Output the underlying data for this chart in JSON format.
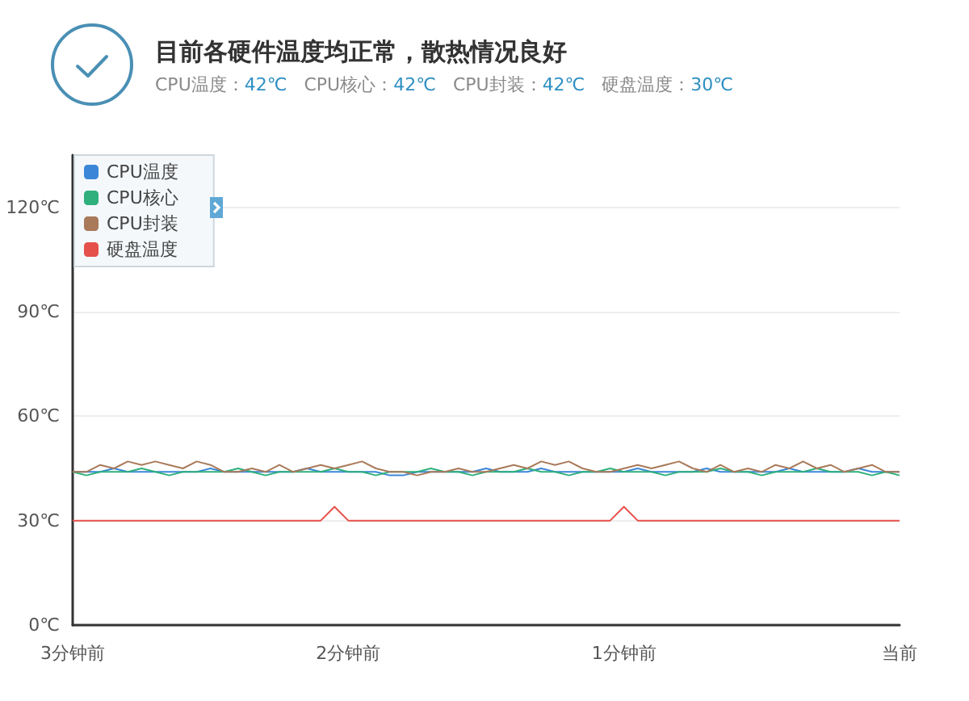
{
  "chart_data": {
    "type": "line",
    "title": "目前各硬件温度均正常，散热情况良好",
    "subtitle": "CPU温度：42℃   CPU核心：42℃   CPU封装：42℃   硬盘温度：30℃",
    "categories": [
      "3分钟前",
      null,
      null,
      null,
      null,
      null,
      null,
      null,
      null,
      null,
      null,
      null,
      null,
      null,
      null,
      null,
      null,
      null,
      null,
      null,
      "2分钟前",
      null,
      null,
      null,
      null,
      null,
      null,
      null,
      null,
      null,
      null,
      null,
      null,
      null,
      null,
      null,
      null,
      null,
      null,
      null,
      "1分钟前",
      null,
      null,
      null,
      null,
      null,
      null,
      null,
      null,
      null,
      null,
      null,
      null,
      null,
      null,
      null,
      null,
      null,
      null,
      null,
      "当前"
    ],
    "series": [
      {
        "name": "CPU温度",
        "color": "#3c86d8",
        "values": [
          44,
          44,
          44,
          45,
          44,
          44,
          44,
          44,
          44,
          44,
          45,
          44,
          44,
          44,
          44,
          44,
          44,
          45,
          44,
          44,
          44,
          44,
          44,
          43,
          43,
          44,
          44,
          44,
          44,
          44,
          45,
          44,
          44,
          44,
          45,
          44,
          44,
          44,
          44,
          44,
          44,
          45,
          44,
          44,
          44,
          44,
          45,
          44,
          44,
          44,
          44,
          44,
          45,
          44,
          44,
          44,
          44,
          45,
          44,
          44,
          44
        ]
      },
      {
        "name": "CPU核心",
        "color": "#2fb07c",
        "values": [
          44,
          43,
          44,
          44,
          44,
          45,
          44,
          43,
          44,
          44,
          44,
          44,
          45,
          44,
          43,
          44,
          44,
          44,
          44,
          45,
          44,
          44,
          43,
          44,
          44,
          44,
          45,
          44,
          44,
          43,
          44,
          44,
          44,
          45,
          44,
          44,
          43,
          44,
          44,
          45,
          44,
          44,
          44,
          43,
          44,
          44,
          44,
          45,
          44,
          44,
          43,
          44,
          44,
          44,
          45,
          44,
          44,
          44,
          43,
          44,
          43
        ]
      },
      {
        "name": "CPU封装",
        "color": "#a97a5a",
        "values": [
          44,
          44,
          46,
          45,
          47,
          46,
          47,
          46,
          45,
          47,
          46,
          44,
          44,
          45,
          44,
          46,
          44,
          45,
          46,
          45,
          46,
          47,
          45,
          44,
          44,
          43,
          44,
          44,
          45,
          44,
          44,
          45,
          46,
          45,
          47,
          46,
          47,
          45,
          44,
          44,
          45,
          46,
          45,
          46,
          47,
          45,
          44,
          46,
          44,
          45,
          44,
          46,
          45,
          47,
          45,
          46,
          44,
          45,
          46,
          44,
          44
        ]
      },
      {
        "name": "硬盘温度",
        "color": "#e5504a",
        "values": [
          30,
          30,
          30,
          30,
          30,
          30,
          30,
          30,
          30,
          30,
          30,
          30,
          30,
          30,
          30,
          30,
          30,
          30,
          30,
          34,
          30,
          30,
          30,
          30,
          30,
          30,
          30,
          30,
          30,
          30,
          30,
          30,
          30,
          30,
          30,
          30,
          30,
          30,
          30,
          30,
          34,
          30,
          30,
          30,
          30,
          30,
          30,
          30,
          30,
          30,
          30,
          30,
          30,
          30,
          30,
          30,
          30,
          30,
          30,
          30,
          30
        ]
      }
    ],
    "ylim": [
      0,
      135
    ],
    "yticks": [
      {
        "value": 0,
        "label": "0℃"
      },
      {
        "value": 30,
        "label": "30℃"
      },
      {
        "value": 60,
        "label": "60℃"
      },
      {
        "value": 90,
        "label": "90℃"
      },
      {
        "value": 120,
        "label": "120℃"
      }
    ],
    "grid": "y",
    "legend": "top left",
    "marker": "none"
  }
}
